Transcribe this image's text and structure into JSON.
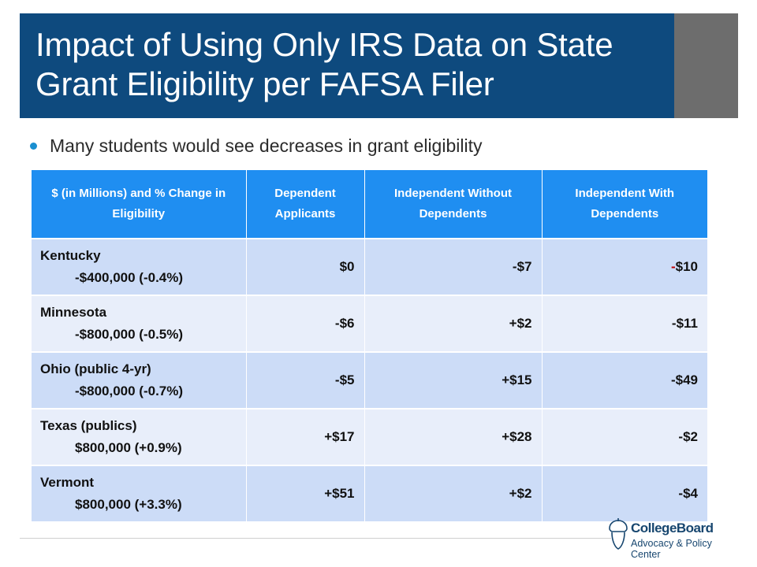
{
  "slide": {
    "title": "Impact of Using Only IRS Data on State Grant Eligibility per FAFSA Filer",
    "bullet": "Many students would see decreases in grant eligibility"
  },
  "table": {
    "headers": [
      "$ (in Millions) and % Change in Eligibility",
      "Dependent Applicants",
      "Independent Without Dependents",
      "Independent With Dependents"
    ],
    "rows": [
      {
        "state": "Kentucky",
        "change": "-$400,000 (-0.4%)",
        "dependent": "$0",
        "indep_without": "-$7",
        "indep_with_sign": "-",
        "indep_with_value": "$10"
      },
      {
        "state": "Minnesota",
        "change": "-$800,000 (-0.5%)",
        "dependent": "-$6",
        "indep_without": "+$2",
        "indep_with_sign": "",
        "indep_with_value": "-$11"
      },
      {
        "state": "Ohio (public 4-yr)",
        "change": "-$800,000 (-0.7%)",
        "dependent": "-$5",
        "indep_without": "+$15",
        "indep_with_sign": "",
        "indep_with_value": "-$49"
      },
      {
        "state": "Texas (publics)",
        "change": "$800,000 (+0.9%)",
        "dependent": "+$17",
        "indep_without": "+$28",
        "indep_with_sign": "",
        "indep_with_value": "-$2"
      },
      {
        "state": "Vermont",
        "change": "$800,000 (+3.3%)",
        "dependent": "+$51",
        "indep_without": "+$2",
        "indep_with_sign": "",
        "indep_with_value": "-$4"
      }
    ]
  },
  "logo": {
    "name": "CollegeBoard",
    "subtitle": "Advocacy & Policy Center",
    "icon": "acorn-logo-icon"
  },
  "colors": {
    "title_bar": "#0e4a7e",
    "title_accent": "#6d6d6d",
    "header_fill": "#1f8ef1",
    "row_odd": "#ccdcf7",
    "row_even": "#e8eefa",
    "bullet": "#1a8fd0",
    "negative_highlight": "#c00000"
  }
}
